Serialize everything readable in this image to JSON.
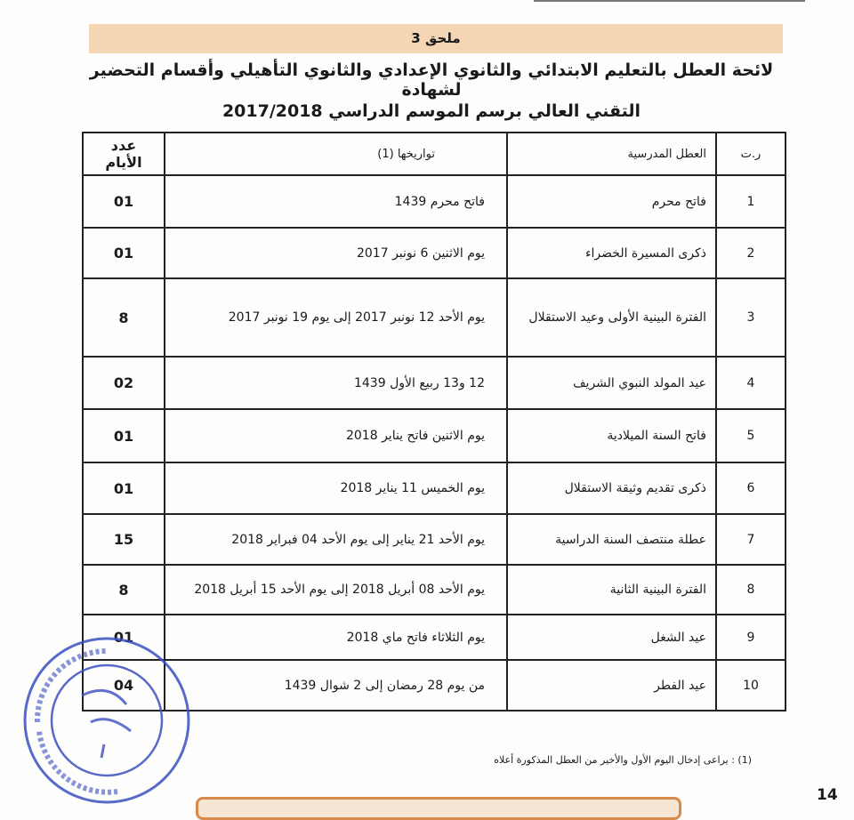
{
  "annex_label": "ملحق 3",
  "title_line1": "لائحة العطل بالتعليم الابتدائي والثانوي الإعدادي والثانوي التأهيلي وأقسام التحضير لشهادة",
  "title_line2": "التقني العالي برسم الموسم الدراسي 2017/2018",
  "table": {
    "headers": {
      "num": "ر.ت",
      "name": "العطل المدرسية",
      "dates": "تواريخها (1)",
      "days": "عدد الأيام"
    },
    "rows": [
      {
        "num": "1",
        "name": "فاتح محرم",
        "dates": "فاتح محرم 1439",
        "days": "01"
      },
      {
        "num": "2",
        "name": "ذكرى المسيرة الخضراء",
        "dates": "يوم الاثنين 6 نونبر 2017",
        "days": "01"
      },
      {
        "num": "3",
        "name": "الفترة البينية الأولى وعيد الاستقلال",
        "dates": "يوم الأحد 12 نونبر 2017 إلى يوم 19 نونبر 2017",
        "days": "8"
      },
      {
        "num": "4",
        "name": "عيد المولد النبوي الشريف",
        "dates": "12 و13 ربيع الأول 1439",
        "days": "02"
      },
      {
        "num": "5",
        "name": "فاتح السنة الميلادية",
        "dates": "يوم الاثنين فاتح يناير 2018",
        "days": "01"
      },
      {
        "num": "6",
        "name": "ذكرى تقديم وثيقة الاستقلال",
        "dates": "يوم الخميس 11 يناير 2018",
        "days": "01"
      },
      {
        "num": "7",
        "name": "عطلة منتصف السنة الدراسية",
        "dates": "يوم الأحد 21 يناير إلى يوم الأحد 04 فبراير 2018",
        "days": "15"
      },
      {
        "num": "8",
        "name": "الفترة البينية الثانية",
        "dates": "يوم الأحد 08 أبريل 2018 إلى يوم الأحد 15 أبريل 2018",
        "days": "8"
      },
      {
        "num": "9",
        "name": "عيد الشغل",
        "dates": "يوم الثلاثاء فاتح ماي 2018",
        "days": "01"
      },
      {
        "num": "10",
        "name": "عيد الفطر",
        "dates": "من يوم 28 رمضان إلى 2 شوال 1439",
        "days": "04"
      }
    ]
  },
  "footnote": "(1)   : يراعى إدخال اليوم الأول والأخير من العطل المذكورة أعلاه",
  "page_number": "14",
  "stamp": {
    "text": "وزارة التربية الوطنية والتكوين المهني - المملكة المغربية - الكتابة العامة",
    "color": "#3a4fc0"
  },
  "colors": {
    "banner": "#f4d5b4",
    "bottom_box_border": "#d88a4a"
  }
}
